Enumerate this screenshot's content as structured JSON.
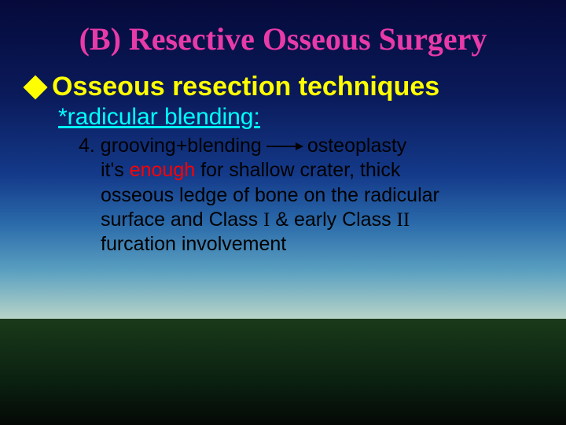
{
  "colors": {
    "title": "#e83aa8",
    "heading": "#ffff00",
    "diamond": "#ffff00",
    "subheading": "#00ffff",
    "body": "#000000",
    "enough": "#ff0000",
    "arrow": "#000000"
  },
  "title": "(B)  Resective Osseous Surgery",
  "heading": "Osseous resection techniques",
  "subheading": "*radicular blending:",
  "line1_a": "4. grooving+blending",
  "line1_b": "osteoplasty",
  "line2_a": "it's ",
  "line2_b": "enough",
  "line2_c": " for shallow crater, thick",
  "line3": "osseous ledge of bone on the radicular",
  "line4_a": "surface and Class ",
  "line4_b": "I",
  "line4_c": " & early Class ",
  "line4_d": "II",
  "line5": "furcation involvement"
}
